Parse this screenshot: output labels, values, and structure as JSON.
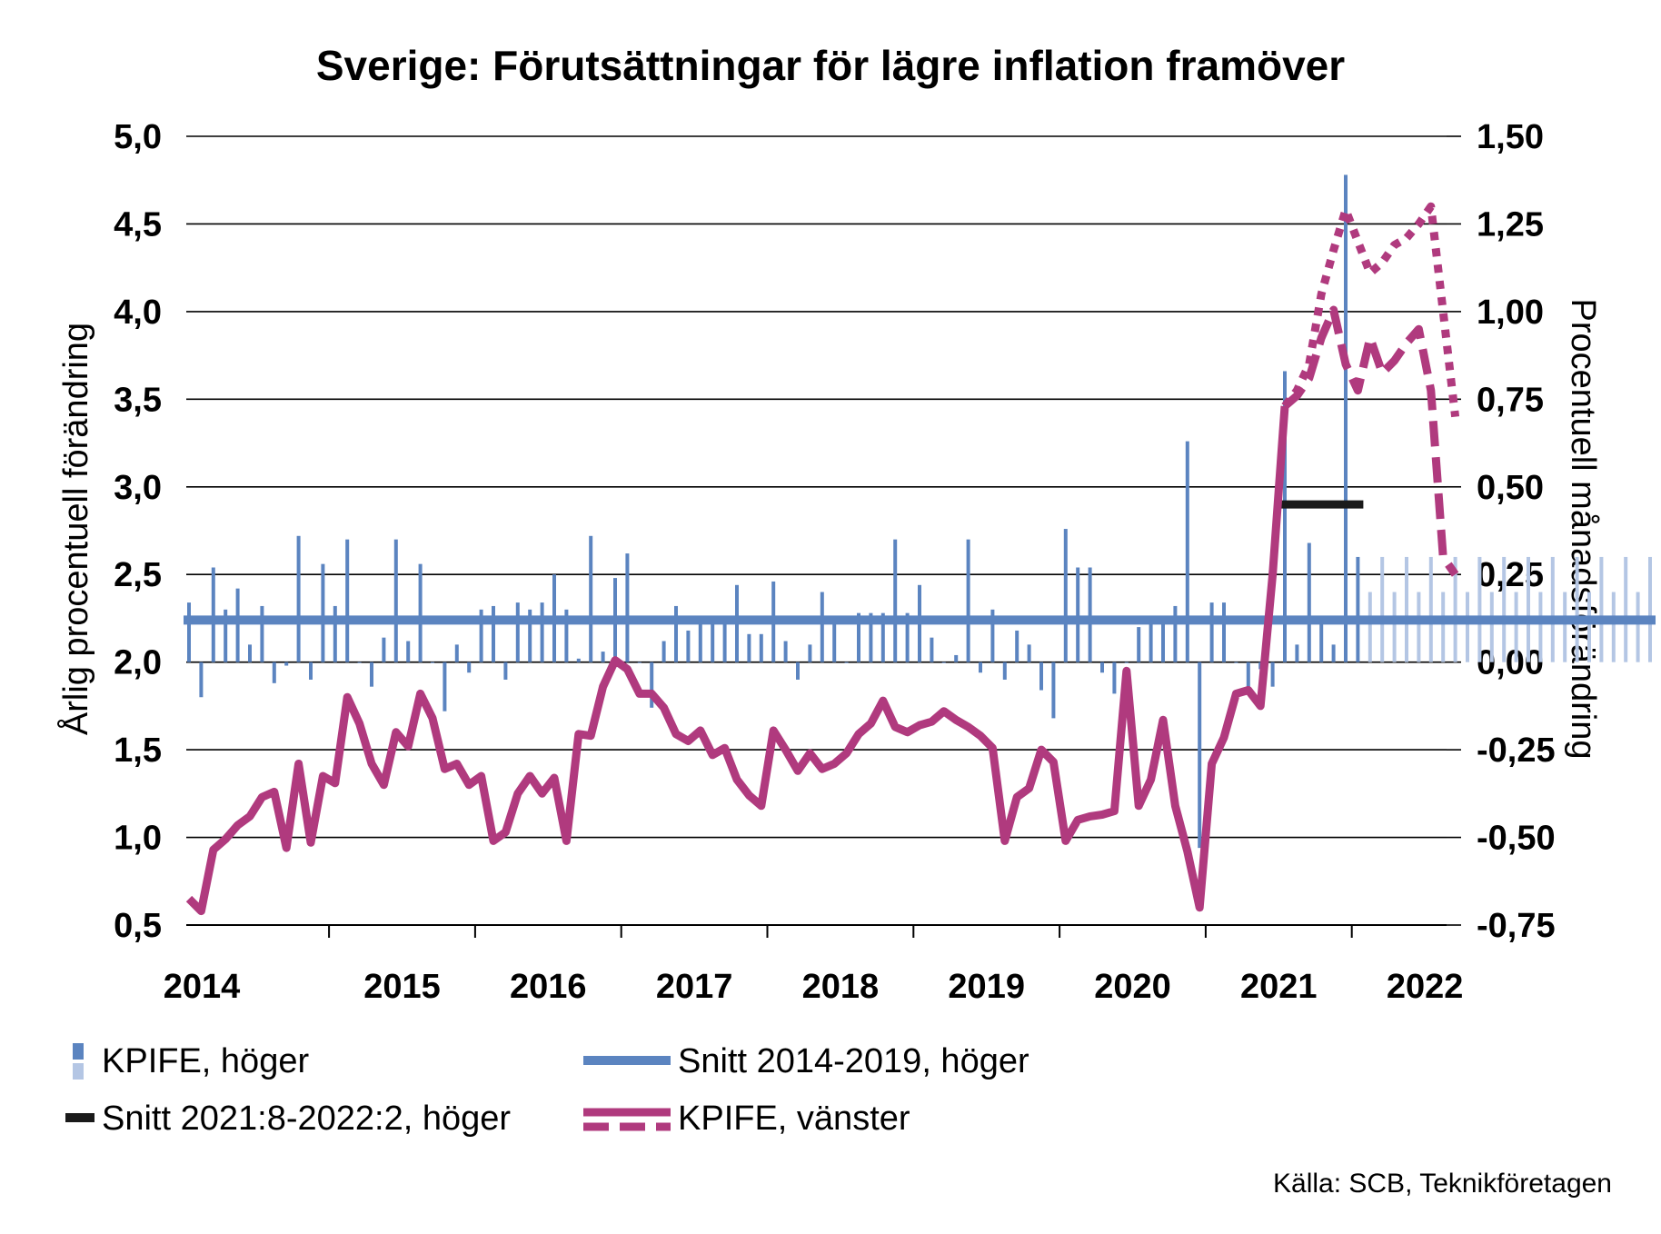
{
  "chart_data": {
    "type": "bar+line",
    "title": "Sverige: Förutsättningar för lägre inflation framöver",
    "ylabel_left": "Årlig procentuell förändring",
    "ylabel_right": "Procentuell månadsförändring",
    "ylim_left": [
      0.5,
      5.0
    ],
    "ylim_right": [
      -0.75,
      1.5
    ],
    "yticks_left": [
      "0,5",
      "1,0",
      "1,5",
      "2,0",
      "2,5",
      "3,0",
      "3,5",
      "4,0",
      "4,5",
      "5,0"
    ],
    "yticks_right": [
      "-0,75",
      "-0,50",
      "-0,25",
      "0,00",
      "0,25",
      "0,50",
      "0,75",
      "1,00",
      "1,25",
      "1,50"
    ],
    "year_labels": [
      "2014",
      "2015",
      "2016",
      "2017",
      "2018",
      "2019",
      "2020",
      "2021",
      "2022"
    ],
    "grid": true,
    "legend_position": "bottom",
    "source": "Källa: SCB, Teknikföretagen",
    "start_month": "2014-01",
    "legend": {
      "bars": "KPIFE, höger",
      "avg_long": "Snitt 2014-2019, höger",
      "avg_short": "Snitt 2021:8-2022:2, höger",
      "line": "KPIFE, vänster"
    },
    "series": [
      {
        "name": "KPIFE, höger",
        "kind": "bar",
        "axis": "right",
        "color": "#5b84c0",
        "values": [
          0.17,
          -0.1,
          0.27,
          0.15,
          0.21,
          0.05,
          0.16,
          -0.06,
          -0.01,
          0.36,
          -0.05,
          0.28,
          0.16,
          0.35,
          0.0,
          -0.07,
          0.07,
          0.35,
          0.06,
          0.28,
          0.0,
          -0.14,
          0.05,
          -0.03,
          0.15,
          0.16,
          -0.05,
          0.17,
          0.15,
          0.17,
          0.25,
          0.15,
          0.01,
          0.36,
          0.03,
          0.24,
          0.31,
          0.0,
          -0.13,
          0.06,
          0.16,
          0.09,
          0.11,
          0.11,
          0.11,
          0.22,
          0.08,
          0.08,
          0.23,
          0.06,
          -0.05,
          0.05,
          0.2,
          0.11,
          0.0,
          0.14,
          0.14,
          0.14,
          0.35,
          0.14,
          0.22,
          0.07,
          0.0,
          0.02,
          0.35,
          -0.03,
          0.15,
          -0.05,
          0.09,
          0.05,
          -0.08,
          -0.16,
          0.38,
          0.27,
          0.27,
          -0.03,
          -0.09,
          0.0,
          0.1,
          0.12,
          0.13,
          0.16,
          0.63,
          -0.53,
          0.17,
          0.17,
          0.0,
          -0.09,
          -0.02,
          -0.07,
          0.83,
          0.05,
          0.34,
          0.11,
          0.05,
          1.39,
          0.3
        ]
      },
      {
        "name": "KPIFE, höger",
        "kind": "bar-forecast",
        "axis": "right",
        "color": "#b4c6e4",
        "values": [
          0.2,
          0.3,
          0.2,
          0.3,
          0.2,
          0.3,
          0.2,
          0.3,
          0.2,
          0.3,
          0.2,
          0.3,
          0.2,
          0.3,
          0.2,
          0.3,
          0.2,
          0.3,
          0.2,
          0.3,
          0.2,
          0.3,
          0.2,
          0.3
        ]
      },
      {
        "name": "Snitt 2014-2019, höger",
        "kind": "hline",
        "axis": "right",
        "color": "#5b84c0",
        "value": 0.12,
        "from_index": 0,
        "to_index": 120
      },
      {
        "name": "Snitt 2021:8-2022:2, höger",
        "kind": "hline",
        "axis": "right",
        "color": "#1a1a1a",
        "value": 0.45,
        "from_index": 90,
        "to_index": 96
      },
      {
        "name": "KPIFE, vänster",
        "kind": "line",
        "axis": "left",
        "color": "#b03a7e",
        "values": [
          0.65,
          0.58,
          0.93,
          0.99,
          1.07,
          1.12,
          1.23,
          1.26,
          0.94,
          1.42,
          0.97,
          1.35,
          1.31,
          1.8,
          1.65,
          1.42,
          1.3,
          1.6,
          1.52,
          1.82,
          1.68,
          1.39,
          1.42,
          1.3,
          1.35,
          0.98,
          1.03,
          1.25,
          1.35,
          1.25,
          1.34,
          0.98,
          1.59,
          1.58,
          1.86,
          2.01,
          1.96,
          1.82,
          1.82,
          1.74,
          1.59,
          1.55,
          1.61,
          1.47,
          1.51,
          1.33,
          1.24,
          1.18,
          1.61,
          1.5,
          1.38,
          1.48,
          1.39,
          1.42,
          1.48,
          1.59,
          1.65,
          1.78,
          1.63,
          1.6,
          1.64,
          1.66,
          1.72,
          1.67,
          1.63,
          1.58,
          1.51,
          0.98,
          1.23,
          1.28,
          1.5,
          1.43,
          0.98,
          1.1,
          1.12,
          1.13,
          1.15,
          1.95,
          1.18,
          1.33,
          1.67,
          1.18,
          0.92,
          0.6,
          1.42,
          1.57,
          1.82,
          1.84,
          1.75,
          2.5,
          3.46
        ]
      },
      {
        "name": "KPIFE, vänster",
        "kind": "line-forecast-dashed",
        "axis": "left",
        "color": "#b03a7e",
        "start_index": 90,
        "values": [
          3.46,
          3.52,
          3.62,
          3.85,
          4.01,
          3.7,
          3.55,
          3.85,
          3.65,
          3.72,
          3.82,
          3.9,
          3.55,
          2.6,
          2.5
        ]
      },
      {
        "name": "KPIFE, vänster",
        "kind": "line-forecast-dotted",
        "axis": "left",
        "color": "#b03a7e",
        "start_index": 90,
        "values": [
          3.46,
          3.55,
          3.7,
          4.1,
          4.35,
          4.58,
          4.4,
          4.22,
          4.28,
          4.38,
          4.42,
          4.5,
          4.6,
          4.0,
          3.4
        ]
      }
    ]
  }
}
